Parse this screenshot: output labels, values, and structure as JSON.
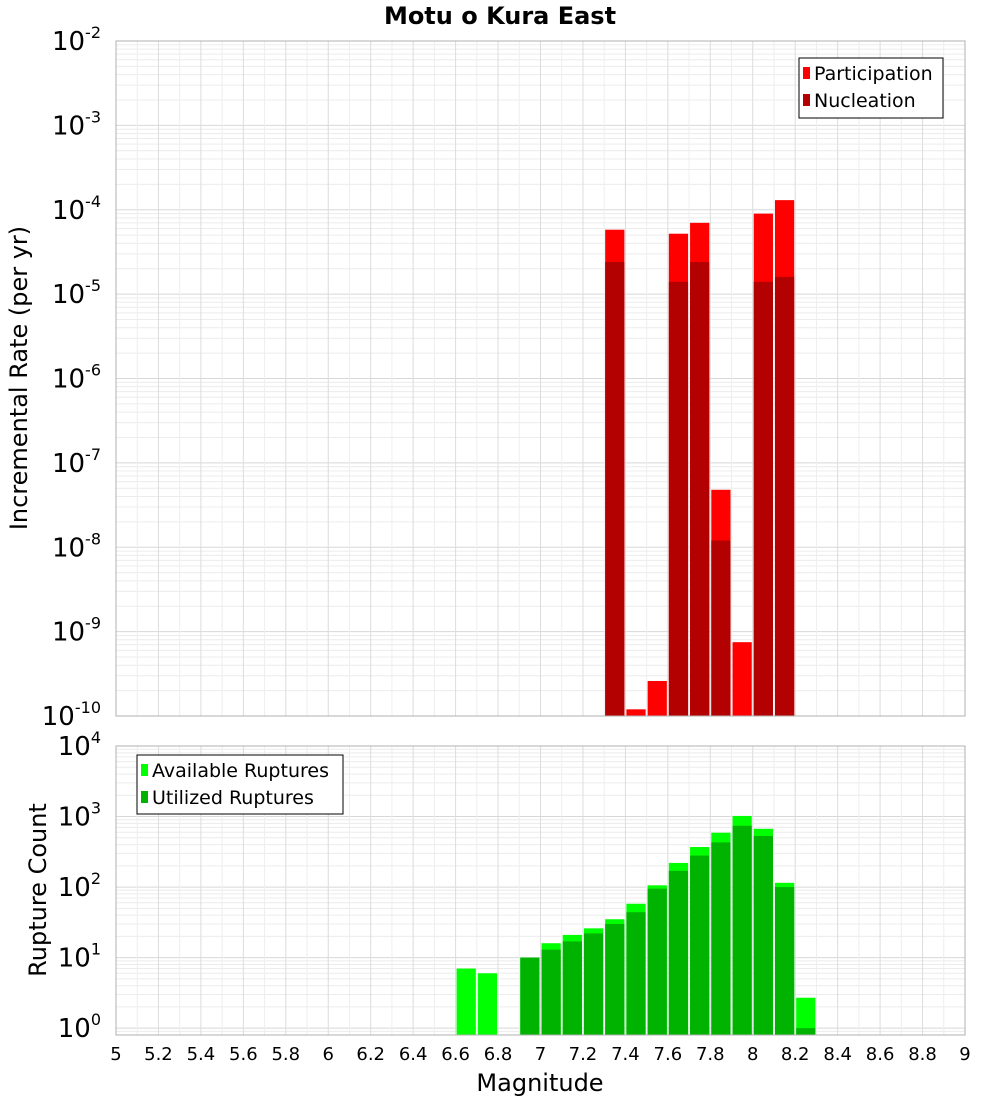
{
  "chart_data": [
    {
      "type": "bar",
      "title": "Motu o Kura East",
      "xlabel": "",
      "ylabel": "Incremental Rate (per yr)",
      "y_scale": "log",
      "xlim": [
        5,
        9
      ],
      "ylim": [
        1e-10,
        0.01
      ],
      "y_ticks": [
        {
          "base": "10",
          "exp": "-2"
        },
        {
          "base": "10",
          "exp": "-3"
        },
        {
          "base": "10",
          "exp": "-4"
        },
        {
          "base": "10",
          "exp": "-5"
        },
        {
          "base": "10",
          "exp": "-6"
        },
        {
          "base": "10",
          "exp": "-7"
        },
        {
          "base": "10",
          "exp": "-8"
        },
        {
          "base": "10",
          "exp": "-9"
        },
        {
          "base": "10",
          "exp": "-10"
        }
      ],
      "grid": true,
      "legend_position": "top-right",
      "bar_width": 0.1,
      "series": [
        {
          "name": "Participation",
          "color": "#ff0000",
          "x": [
            7.35,
            7.45,
            7.55,
            7.65,
            7.75,
            7.85,
            7.95,
            8.05,
            8.15
          ],
          "values": [
            5.8e-05,
            1.2e-10,
            2.6e-10,
            5.2e-05,
            7e-05,
            4.8e-08,
            7.5e-10,
            9e-05,
            0.00013
          ]
        },
        {
          "name": "Nucleation",
          "color": "#b30000",
          "x": [
            7.35,
            7.65,
            7.75,
            7.85,
            8.05,
            8.15
          ],
          "values": [
            2.4e-05,
            1.4e-05,
            2.4e-05,
            1.2e-08,
            1.4e-05,
            1.6e-05
          ]
        }
      ]
    },
    {
      "type": "bar",
      "title": "",
      "xlabel": "Magnitude",
      "ylabel": "Rupture Count",
      "y_scale": "log",
      "xlim": [
        5,
        9
      ],
      "ylim": [
        0.8,
        10000
      ],
      "x_ticks": [
        "5",
        "5.2",
        "5.4",
        "5.6",
        "5.8",
        "6",
        "6.2",
        "6.4",
        "6.6",
        "6.8",
        "7",
        "7.2",
        "7.4",
        "7.6",
        "7.8",
        "8",
        "8.2",
        "8.4",
        "8.6",
        "8.8",
        "9"
      ],
      "y_ticks": [
        {
          "base": "10",
          "exp": "4"
        },
        {
          "base": "10",
          "exp": "3"
        },
        {
          "base": "10",
          "exp": "2"
        },
        {
          "base": "10",
          "exp": "1"
        },
        {
          "base": "10",
          "exp": "0"
        }
      ],
      "grid": true,
      "legend_position": "top-left",
      "bar_width": 0.1,
      "series": [
        {
          "name": "Available Ruptures",
          "color": "#00ff00",
          "x": [
            6.65,
            6.75,
            6.95,
            7.05,
            7.15,
            7.25,
            7.35,
            7.45,
            7.55,
            7.65,
            7.75,
            7.85,
            7.95,
            8.05,
            8.15,
            8.25
          ],
          "values": [
            7,
            6,
            10,
            16,
            21,
            26,
            35,
            58,
            106,
            220,
            370,
            590,
            1020,
            670,
            115,
            2.7
          ]
        },
        {
          "name": "Utilized Ruptures",
          "color": "#00b300",
          "x": [
            6.95,
            7.05,
            7.15,
            7.25,
            7.35,
            7.45,
            7.55,
            7.65,
            7.75,
            7.85,
            7.95,
            8.05,
            8.15,
            8.25
          ],
          "values": [
            10,
            13,
            17,
            22,
            30,
            44,
            95,
            170,
            280,
            430,
            740,
            530,
            100,
            1
          ]
        }
      ]
    }
  ]
}
